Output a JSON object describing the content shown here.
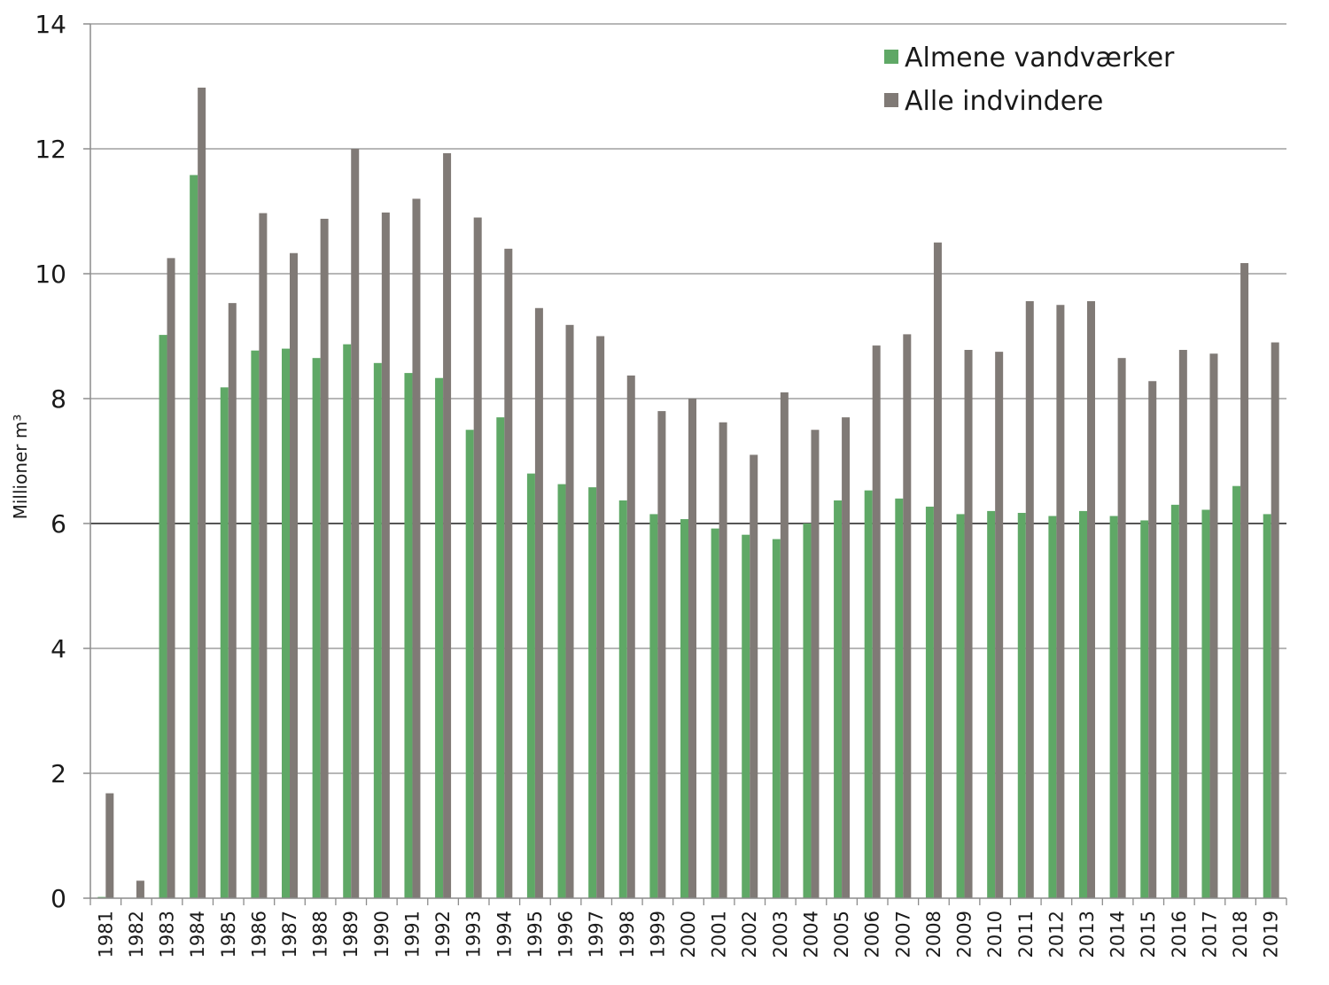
{
  "chart_data": {
    "type": "bar",
    "title": "",
    "xlabel": "",
    "ylabel": "Millioner  m³",
    "ylim": [
      0,
      14
    ],
    "yticks": [
      0,
      2,
      4,
      6,
      8,
      10,
      12,
      14
    ],
    "grid": true,
    "legend_position": "top-right",
    "categories": [
      "1981",
      "1982",
      "1983",
      "1984",
      "1985",
      "1986",
      "1987",
      "1988",
      "1989",
      "1990",
      "1991",
      "1992",
      "1993",
      "1994",
      "1995",
      "1996",
      "1997",
      "1998",
      "1999",
      "2000",
      "2001",
      "2002",
      "2003",
      "2004",
      "2005",
      "2006",
      "2007",
      "2008",
      "2009",
      "2010",
      "2011",
      "2012",
      "2013",
      "2014",
      "2015",
      "2016",
      "2017",
      "2018",
      "2019"
    ],
    "series": [
      {
        "name": "Almene vandværker",
        "color": "#5fa866",
        "values": [
          0.02,
          0,
          9.02,
          11.58,
          8.18,
          8.77,
          8.8,
          8.65,
          8.87,
          8.57,
          8.41,
          8.33,
          7.5,
          7.7,
          6.8,
          6.63,
          6.58,
          6.37,
          6.15,
          6.07,
          5.92,
          5.82,
          5.75,
          6.0,
          6.37,
          6.53,
          6.4,
          6.27,
          6.15,
          6.2,
          6.17,
          6.12,
          6.2,
          6.12,
          6.05,
          6.3,
          6.22,
          6.6,
          6.15
        ]
      },
      {
        "name": "Alle indvindere",
        "color": "#807a76",
        "values": [
          1.68,
          0.28,
          10.25,
          12.98,
          9.53,
          10.97,
          10.33,
          10.88,
          12.0,
          10.98,
          11.2,
          11.93,
          10.9,
          10.4,
          9.45,
          9.18,
          9.0,
          8.37,
          7.8,
          8.0,
          7.62,
          7.1,
          8.1,
          7.5,
          7.7,
          8.85,
          9.03,
          10.5,
          8.78,
          8.75,
          9.56,
          9.5,
          9.56,
          8.65,
          8.28,
          8.78,
          8.72,
          10.17,
          8.9
        ]
      }
    ]
  }
}
